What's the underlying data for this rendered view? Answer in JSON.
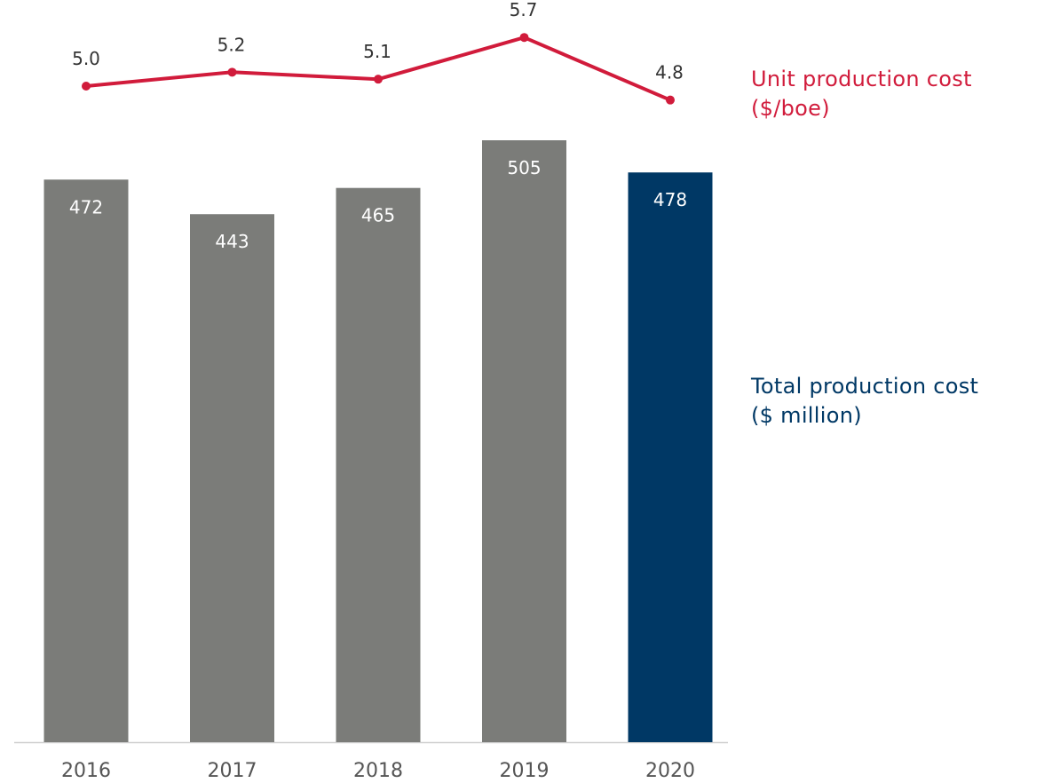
{
  "colors": {
    "bar": "#7b7c79",
    "bar_highlight": "#003865",
    "line": "#d11b3b",
    "bar_label": "#ffffff",
    "axis_text": "#555555",
    "axis_line": "#cfcfcf",
    "line_label": "#333333"
  },
  "legend": {
    "line_title": "Unit production cost",
    "line_unit": "($/boe)",
    "bar_title": "Total production cost",
    "bar_unit": "($ million)"
  },
  "chart_data": {
    "type": "bar",
    "categories": [
      "2016",
      "2017",
      "2018",
      "2019",
      "2020"
    ],
    "series": [
      {
        "name": "Total production cost ($ million)",
        "type": "bar",
        "values": [
          472,
          443,
          465,
          505,
          478
        ],
        "highlight_index": 4
      },
      {
        "name": "Unit production cost ($/boe)",
        "type": "line",
        "values": [
          5.0,
          5.2,
          5.1,
          5.7,
          4.8
        ]
      }
    ],
    "title": "",
    "xlabel": "",
    "ylabel": "",
    "ylim": [
      0,
      620
    ],
    "y2lim": [
      0,
      6.3
    ],
    "grid": false,
    "legend": "right"
  }
}
